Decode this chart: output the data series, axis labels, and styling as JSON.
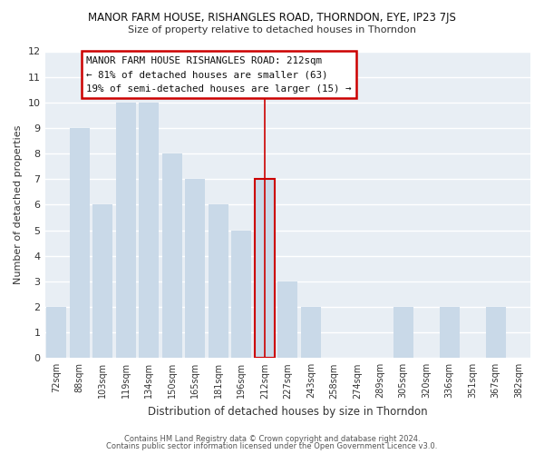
{
  "title": "MANOR FARM HOUSE, RISHANGLES ROAD, THORNDON, EYE, IP23 7JS",
  "subtitle": "Size of property relative to detached houses in Thorndon",
  "xlabel": "Distribution of detached houses by size in Thorndon",
  "ylabel": "Number of detached properties",
  "bar_labels": [
    "72sqm",
    "88sqm",
    "103sqm",
    "119sqm",
    "134sqm",
    "150sqm",
    "165sqm",
    "181sqm",
    "196sqm",
    "212sqm",
    "227sqm",
    "243sqm",
    "258sqm",
    "274sqm",
    "289sqm",
    "305sqm",
    "320sqm",
    "336sqm",
    "351sqm",
    "367sqm",
    "382sqm"
  ],
  "bar_values": [
    2,
    9,
    6,
    10,
    10,
    8,
    7,
    6,
    5,
    7,
    3,
    2,
    0,
    0,
    0,
    2,
    0,
    2,
    0,
    2,
    0
  ],
  "bar_color": "#c9d9e8",
  "highlight_index": 9,
  "highlight_line_color": "#cc0000",
  "ylim": [
    0,
    12
  ],
  "yticks": [
    0,
    1,
    2,
    3,
    4,
    5,
    6,
    7,
    8,
    9,
    10,
    11,
    12
  ],
  "annotation_title": "MANOR FARM HOUSE RISHANGLES ROAD: 212sqm",
  "annotation_line1": "← 81% of detached houses are smaller (63)",
  "annotation_line2": "19% of semi-detached houses are larger (15) →",
  "annotation_box_color": "#ffffff",
  "annotation_box_edge": "#cc0000",
  "footer1": "Contains HM Land Registry data © Crown copyright and database right 2024.",
  "footer2": "Contains public sector information licensed under the Open Government Licence v3.0.",
  "bg_color": "#ffffff",
  "plot_bg_color": "#e8eef4",
  "grid_color": "#ffffff"
}
